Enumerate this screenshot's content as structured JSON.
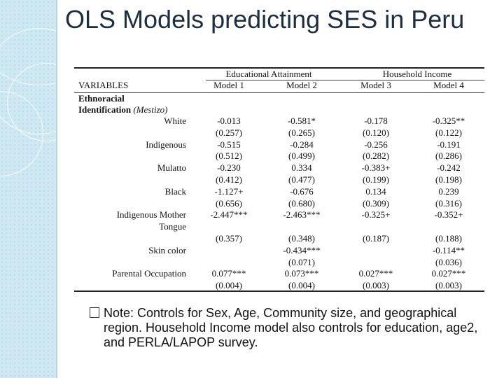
{
  "slide": {
    "title": "OLS Models predicting SES in Peru"
  },
  "table": {
    "group_headers": [
      "Educational Attainment",
      "Household Income"
    ],
    "variables_label": "VARIABLES",
    "model_headers": [
      "Model 1",
      "Model 2",
      "Model 3",
      "Model 4"
    ],
    "section_title_1": "Ethnoracial",
    "section_title_2": "Identification",
    "section_ref": "(Mestizo)",
    "rows": [
      {
        "label": "White",
        "values": [
          "-0.013",
          "-0.581*",
          "-0.178",
          "-0.325**"
        ]
      },
      {
        "label": "",
        "values": [
          "(0.257)",
          "(0.265)",
          "(0.120)",
          "(0.122)"
        ]
      },
      {
        "label": "Indigenous",
        "values": [
          "-0.515",
          "-0.284",
          "-0.256",
          "-0.191"
        ]
      },
      {
        "label": "",
        "values": [
          "(0.512)",
          "(0.499)",
          "(0.282)",
          "(0.286)"
        ]
      },
      {
        "label": "Mulatto",
        "values": [
          "-0.230",
          "0.334",
          "-0.383+",
          "-0.242"
        ]
      },
      {
        "label": "",
        "values": [
          "(0.412)",
          "(0.477)",
          "(0.199)",
          "(0.198)"
        ]
      },
      {
        "label": "Black",
        "values": [
          "-1.127+",
          "-0.676",
          "0.134",
          "0.239"
        ]
      },
      {
        "label": "",
        "values": [
          "(0.656)",
          "(0.680)",
          "(0.309)",
          "(0.316)"
        ]
      },
      {
        "label": "Indigenous Mother",
        "values": [
          "-2.447***",
          "-2.463***",
          "-0.325+",
          "-0.352+"
        ]
      },
      {
        "label": "Tongue",
        "values": [
          "",
          "",
          "",
          ""
        ]
      },
      {
        "label": "",
        "values": [
          "(0.357)",
          "(0.348)",
          "(0.187)",
          "(0.188)"
        ]
      },
      {
        "label": "Skin color",
        "values": [
          "",
          "-0.434***",
          "",
          "-0.114**"
        ]
      },
      {
        "label": "",
        "values": [
          "",
          "(0.071)",
          "",
          "(0.036)"
        ]
      },
      {
        "label": "Parental Occupation",
        "values": [
          "0.077***",
          "0.073***",
          "0.027***",
          "0.027***"
        ]
      },
      {
        "label": "",
        "values": [
          "(0.004)",
          "(0.004)",
          "(0.003)",
          "(0.003)"
        ]
      }
    ]
  },
  "note": {
    "icon": "checkbox-bullet-icon",
    "text": "Note: Controls for Sex,  Age, Community size, and geographical region. Household Income model also controls for education, age2, and PERLA/LAPOP survey."
  }
}
